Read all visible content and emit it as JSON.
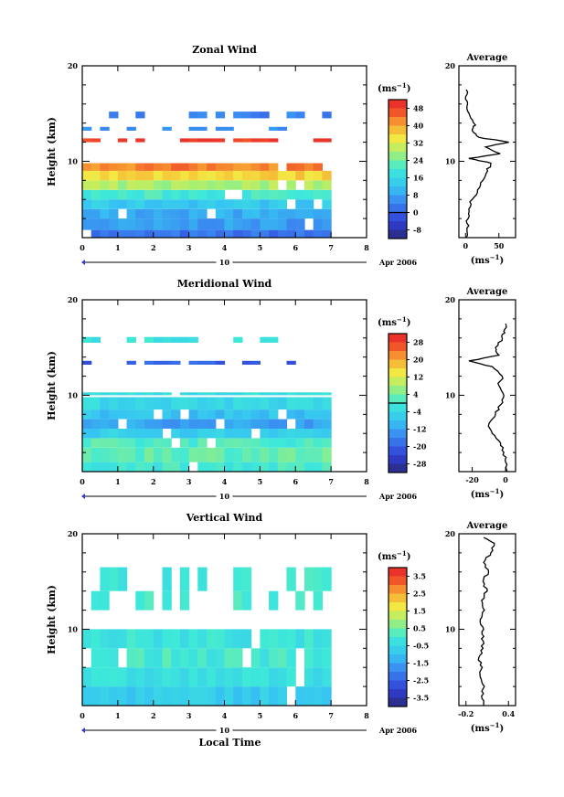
{
  "chart_data": [
    {
      "type": "heatmap",
      "title": "Zonal Wind",
      "ylabel": "Height (km)",
      "xticks": [
        "0",
        "1",
        "2",
        "3",
        "4",
        "5",
        "6",
        "7",
        "8"
      ],
      "xlim": [
        0,
        8
      ],
      "yticks": [
        "10",
        "20"
      ],
      "ylim": [
        2,
        20
      ],
      "date_tick": "10",
      "date_label": "Apr 2006",
      "colorbar": {
        "unit": "(ms",
        "unit_exp": "−1",
        "unit_close": ")",
        "labels": [
          "48",
          "40",
          "32",
          "24",
          "16",
          "8",
          "0",
          "-8"
        ],
        "min": -12,
        "max": 52
      },
      "layers": [
        {
          "h0": 2.0,
          "h1": 2.8,
          "value": 2
        },
        {
          "h0": 2.8,
          "h1": 4.0,
          "value": 7
        },
        {
          "h0": 4.0,
          "h1": 5.0,
          "value": 9
        },
        {
          "h0": 5.0,
          "h1": 6.0,
          "value": 13
        },
        {
          "h0": 6.0,
          "h1": 7.0,
          "value": 20
        },
        {
          "h0": 7.0,
          "h1": 8.0,
          "value": 28
        },
        {
          "h0": 8.0,
          "h1": 9.0,
          "value": 36
        },
        {
          "h0": 9.0,
          "h1": 9.8,
          "value": 43
        },
        {
          "h0": 12.0,
          "h1": 12.4,
          "value": 48
        },
        {
          "h0": 13.2,
          "h1": 13.6,
          "value": 5
        },
        {
          "h0": 14.5,
          "h1": 15.2,
          "value": 4
        }
      ],
      "average": {
        "title": "Average",
        "xticks": [
          "0",
          "50"
        ],
        "xlim": [
          -10,
          75
        ],
        "xlabel": "(ms",
        "xlabel_exp": "−1",
        "xlabel_close": ")",
        "yticks": [
          "10",
          "20"
        ],
        "profile": [
          [
            2,
            1
          ],
          [
            3,
            2
          ],
          [
            4,
            4
          ],
          [
            5,
            5
          ],
          [
            6,
            10
          ],
          [
            7,
            18
          ],
          [
            8,
            26
          ],
          [
            9,
            33
          ],
          [
            9.8,
            38
          ],
          [
            10.3,
            5
          ],
          [
            10.8,
            52
          ],
          [
            11.5,
            30
          ],
          [
            12,
            65
          ],
          [
            12.5,
            20
          ],
          [
            13.2,
            10
          ],
          [
            13.8,
            15
          ],
          [
            14.5,
            8
          ],
          [
            15.5,
            2
          ],
          [
            16.5,
            0
          ],
          [
            17.5,
            1
          ]
        ]
      }
    },
    {
      "type": "heatmap",
      "title": "Meridional Wind",
      "ylabel": "Height (km)",
      "xticks": [
        "0",
        "1",
        "2",
        "3",
        "4",
        "5",
        "6",
        "7",
        "8"
      ],
      "xlim": [
        0,
        8
      ],
      "yticks": [
        "10",
        "20"
      ],
      "ylim": [
        2,
        20
      ],
      "date_tick": "10",
      "date_label": "Apr 2006",
      "colorbar": {
        "unit": "(ms",
        "unit_exp": "−1",
        "unit_close": ")",
        "labels": [
          "28",
          "20",
          "12",
          "4",
          "-4",
          "-12",
          "-20",
          "-28"
        ],
        "min": -32,
        "max": 32
      },
      "layers": [
        {
          "h0": 2.0,
          "h1": 3.0,
          "value": 0
        },
        {
          "h0": 3.0,
          "h1": 4.5,
          "value": 3
        },
        {
          "h0": 4.5,
          "h1": 5.5,
          "value": 1
        },
        {
          "h0": 5.5,
          "h1": 6.5,
          "value": -6
        },
        {
          "h0": 6.5,
          "h1": 7.5,
          "value": -12
        },
        {
          "h0": 7.5,
          "h1": 8.5,
          "value": -8
        },
        {
          "h0": 8.5,
          "h1": 9.8,
          "value": -4
        },
        {
          "h0": 10.0,
          "h1": 10.3,
          "value": -3
        },
        {
          "h0": 13.2,
          "h1": 13.6,
          "value": -20
        },
        {
          "h0": 15.5,
          "h1": 16.1,
          "value": -2
        }
      ],
      "average": {
        "title": "Average",
        "xticks": [
          "-20",
          "0"
        ],
        "xlim": [
          -28,
          6
        ],
        "xlabel": "(ms",
        "xlabel_exp": "−1",
        "xlabel_close": ")",
        "yticks": [
          "10",
          "20"
        ],
        "profile": [
          [
            2,
            1
          ],
          [
            3,
            0
          ],
          [
            4,
            -1
          ],
          [
            5,
            -3
          ],
          [
            6,
            -8
          ],
          [
            7,
            -10
          ],
          [
            8,
            -6
          ],
          [
            9,
            -3
          ],
          [
            10,
            -1
          ],
          [
            11,
            -4
          ],
          [
            12,
            -2
          ],
          [
            13,
            -8
          ],
          [
            13.6,
            -22
          ],
          [
            14.2,
            -4
          ],
          [
            15,
            -6
          ],
          [
            16,
            -2
          ],
          [
            16.7,
            -1
          ],
          [
            17.5,
            0
          ]
        ]
      }
    },
    {
      "type": "heatmap",
      "title": "Vertical Wind",
      "ylabel": "Height (km)",
      "xlabel": "Local Time",
      "xticks": [
        "0",
        "1",
        "2",
        "3",
        "4",
        "5",
        "6",
        "7",
        "8"
      ],
      "xlim": [
        0,
        8
      ],
      "yticks": [
        "10",
        "20"
      ],
      "ylim": [
        2,
        20
      ],
      "date_tick": "10",
      "date_label": "Apr 2006",
      "colorbar": {
        "unit": "(ms",
        "unit_exp": "−1",
        "unit_close": ")",
        "labels": [
          "3.5",
          "2.5",
          "1.5",
          "0.5",
          "-0.5",
          "-1.5",
          "-2.5",
          "-3.5"
        ],
        "min": -4,
        "max": 4
      },
      "layers": [
        {
          "h0": 2.0,
          "h1": 4.0,
          "value": -0.8
        },
        {
          "h0": 4.0,
          "h1": 6.0,
          "value": -0.3
        },
        {
          "h0": 6.0,
          "h1": 8.0,
          "value": 0.0
        },
        {
          "h0": 8.0,
          "h1": 10.0,
          "value": -0.2
        },
        {
          "h0": 12.0,
          "h1": 14.0,
          "value": 0.1
        },
        {
          "h0": 14.0,
          "h1": 16.5,
          "value": -0.1
        }
      ],
      "average": {
        "title": "Average",
        "xticks": [
          "-0.2",
          "0.4"
        ],
        "xlim": [
          -0.3,
          0.5
        ],
        "xlabel": "(ms",
        "xlabel_exp": "−1",
        "xlabel_close": ")",
        "yticks": [
          "10",
          "20"
        ],
        "profile": [
          [
            2,
            0.05
          ],
          [
            3,
            0.02
          ],
          [
            4,
            0.06
          ],
          [
            5,
            0.0
          ],
          [
            6,
            0.03
          ],
          [
            7,
            -0.02
          ],
          [
            8,
            0.04
          ],
          [
            9,
            0.02
          ],
          [
            10,
            0.05
          ],
          [
            11,
            0.0
          ],
          [
            12,
            0.06
          ],
          [
            13,
            0.02
          ],
          [
            14,
            0.1
          ],
          [
            15,
            0.04
          ],
          [
            16,
            0.12
          ],
          [
            17,
            0.05
          ],
          [
            18,
            0.15
          ],
          [
            19,
            0.2
          ],
          [
            19.6,
            0.05
          ]
        ]
      }
    }
  ]
}
